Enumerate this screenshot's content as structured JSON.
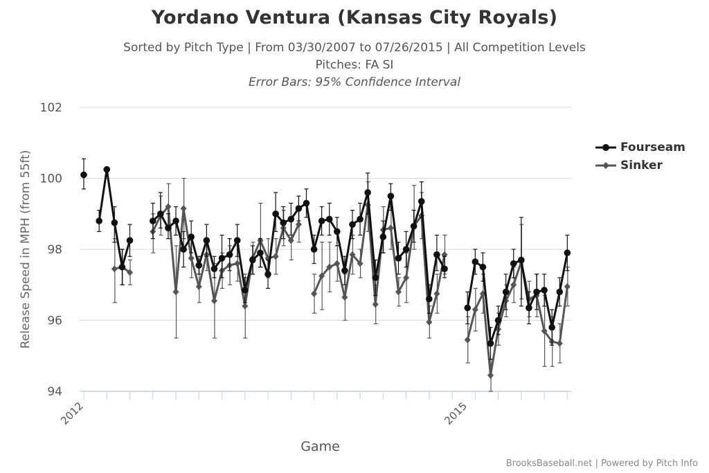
{
  "title": "Yordano Ventura (Kansas City Royals)",
  "subtitle_1": "Sorted by Pitch Type | From 03/30/2007 to 07/26/2015 | All Competition Levels",
  "subtitle_2": "Pitches: FA SI",
  "subtitle_3": "Error Bars: 95% Confidence Interval",
  "credit": "BrooksBaseball.net | Powered by Pitch Info",
  "colors": {
    "fourseam": "#111111",
    "sinker": "#555555",
    "grid": "#d8d8d8",
    "axis": "#c0d0e0"
  },
  "chart_data": {
    "type": "line",
    "xlabel": "Game",
    "ylabel": "Release Speed in MPH (from 55ft)",
    "ylim": [
      94,
      102
    ],
    "yticks": [
      94,
      96,
      98,
      100,
      102
    ],
    "games": 64,
    "x_tick_labels": [
      {
        "game": 0,
        "label": "2012"
      },
      {
        "game": 50,
        "label": "2015"
      }
    ],
    "legend_position": "right",
    "series": [
      {
        "name": "Fourseam",
        "color": "#111111",
        "marker": "circle",
        "values": [
          100.1,
          null,
          98.8,
          100.25,
          98.75,
          97.5,
          98.25,
          null,
          null,
          98.8,
          99.0,
          98.6,
          98.8,
          98.0,
          98.35,
          97.55,
          98.25,
          97.45,
          97.75,
          97.85,
          98.25,
          96.85,
          97.7,
          97.9,
          97.3,
          99.0,
          98.75,
          98.85,
          99.15,
          99.3,
          98.0,
          98.8,
          98.85,
          98.5,
          97.4,
          98.7,
          98.85,
          99.6,
          97.2,
          98.35,
          99.5,
          97.75,
          98.0,
          98.65,
          99.35,
          96.6,
          97.85,
          97.45,
          null,
          null,
          96.35,
          97.65,
          97.5,
          95.35,
          96.0,
          96.8,
          97.6,
          97.7,
          96.35,
          96.8,
          96.85,
          95.8,
          96.8,
          97.9
        ],
        "err_low": [
          99.7,
          null,
          98.5,
          null,
          98.2,
          97.0,
          97.8,
          null,
          null,
          98.3,
          98.6,
          98.3,
          98.4,
          97.5,
          97.9,
          97.3,
          97.8,
          97.2,
          97.2,
          97.4,
          97.8,
          96.5,
          97.3,
          97.5,
          96.9,
          98.5,
          98.3,
          98.4,
          98.8,
          98.9,
          97.6,
          98.4,
          98.4,
          98.1,
          97.0,
          98.3,
          98.4,
          99.0,
          96.7,
          97.9,
          99.1,
          97.3,
          97.5,
          98.2,
          98.9,
          96.2,
          97.4,
          97.2,
          null,
          null,
          95.9,
          97.3,
          97.1,
          94.9,
          95.6,
          96.3,
          97.2,
          96.4,
          95.9,
          96.3,
          96.4,
          95.3,
          96.4,
          97.4
        ],
        "err_high": [
          100.55,
          null,
          99.1,
          null,
          99.2,
          98.0,
          98.7,
          null,
          null,
          99.3,
          99.6,
          99.0,
          99.2,
          98.5,
          98.8,
          97.8,
          98.7,
          97.8,
          98.4,
          98.3,
          98.7,
          97.2,
          98.1,
          98.3,
          97.7,
          99.6,
          99.2,
          99.3,
          99.5,
          99.7,
          98.4,
          99.2,
          99.3,
          98.9,
          97.8,
          99.1,
          99.3,
          100.15,
          97.7,
          98.8,
          99.85,
          98.2,
          98.5,
          99.1,
          99.9,
          97.0,
          98.4,
          97.8,
          null,
          null,
          96.8,
          98.0,
          97.9,
          95.8,
          96.4,
          97.3,
          98.0,
          98.9,
          96.8,
          97.3,
          97.3,
          96.3,
          97.2,
          98.4
        ]
      },
      {
        "name": "Sinker",
        "color": "#555555",
        "marker": "diamond",
        "values": [
          null,
          null,
          null,
          null,
          97.45,
          97.5,
          97.35,
          null,
          null,
          98.5,
          98.95,
          99.2,
          96.8,
          99.15,
          97.75,
          96.95,
          97.85,
          96.55,
          97.4,
          97.55,
          97.6,
          96.4,
          97.75,
          98.25,
          97.75,
          97.8,
          98.6,
          98.25,
          98.7,
          null,
          96.75,
          97.25,
          97.5,
          97.6,
          96.65,
          97.85,
          97.6,
          99.25,
          96.45,
          98.55,
          98.6,
          96.8,
          97.2,
          98.65,
          98.95,
          95.95,
          96.75,
          97.85,
          null,
          null,
          95.45,
          96.3,
          96.75,
          94.45,
          95.75,
          96.55,
          97.0,
          97.65,
          96.6,
          96.7,
          95.7,
          95.4,
          95.35,
          96.95
        ],
        "err_low": [
          null,
          null,
          null,
          null,
          96.5,
          97.0,
          97.0,
          null,
          null,
          97.9,
          98.4,
          98.6,
          95.5,
          98.3,
          97.2,
          96.5,
          97.4,
          95.5,
          96.9,
          97.0,
          97.1,
          95.5,
          97.3,
          97.5,
          97.2,
          97.3,
          98.1,
          97.7,
          98.2,
          null,
          96.2,
          96.3,
          96.8,
          97.1,
          96.0,
          97.3,
          97.2,
          98.5,
          95.9,
          97.9,
          98.0,
          96.4,
          96.5,
          98.0,
          98.3,
          95.5,
          96.2,
          97.3,
          null,
          null,
          94.8,
          95.7,
          96.2,
          94.0,
          95.3,
          96.1,
          96.5,
          96.6,
          96.1,
          96.1,
          94.7,
          94.7,
          94.8,
          96.4
        ],
        "err_high": [
          null,
          null,
          null,
          null,
          98.3,
          98.0,
          97.7,
          null,
          null,
          99.0,
          99.5,
          99.85,
          98.1,
          100.0,
          98.3,
          97.5,
          98.3,
          97.6,
          97.9,
          98.1,
          98.1,
          97.3,
          98.2,
          99.3,
          98.3,
          98.3,
          99.1,
          98.8,
          99.2,
          null,
          97.3,
          98.2,
          98.2,
          98.1,
          97.3,
          98.4,
          98.0,
          99.9,
          97.0,
          99.2,
          99.2,
          97.2,
          97.9,
          99.8,
          99.6,
          96.4,
          97.3,
          98.4,
          null,
          null,
          96.1,
          96.9,
          97.3,
          94.9,
          96.2,
          97.0,
          97.5,
          98.7,
          97.1,
          97.3,
          96.7,
          96.1,
          95.9,
          97.5
        ]
      }
    ]
  }
}
